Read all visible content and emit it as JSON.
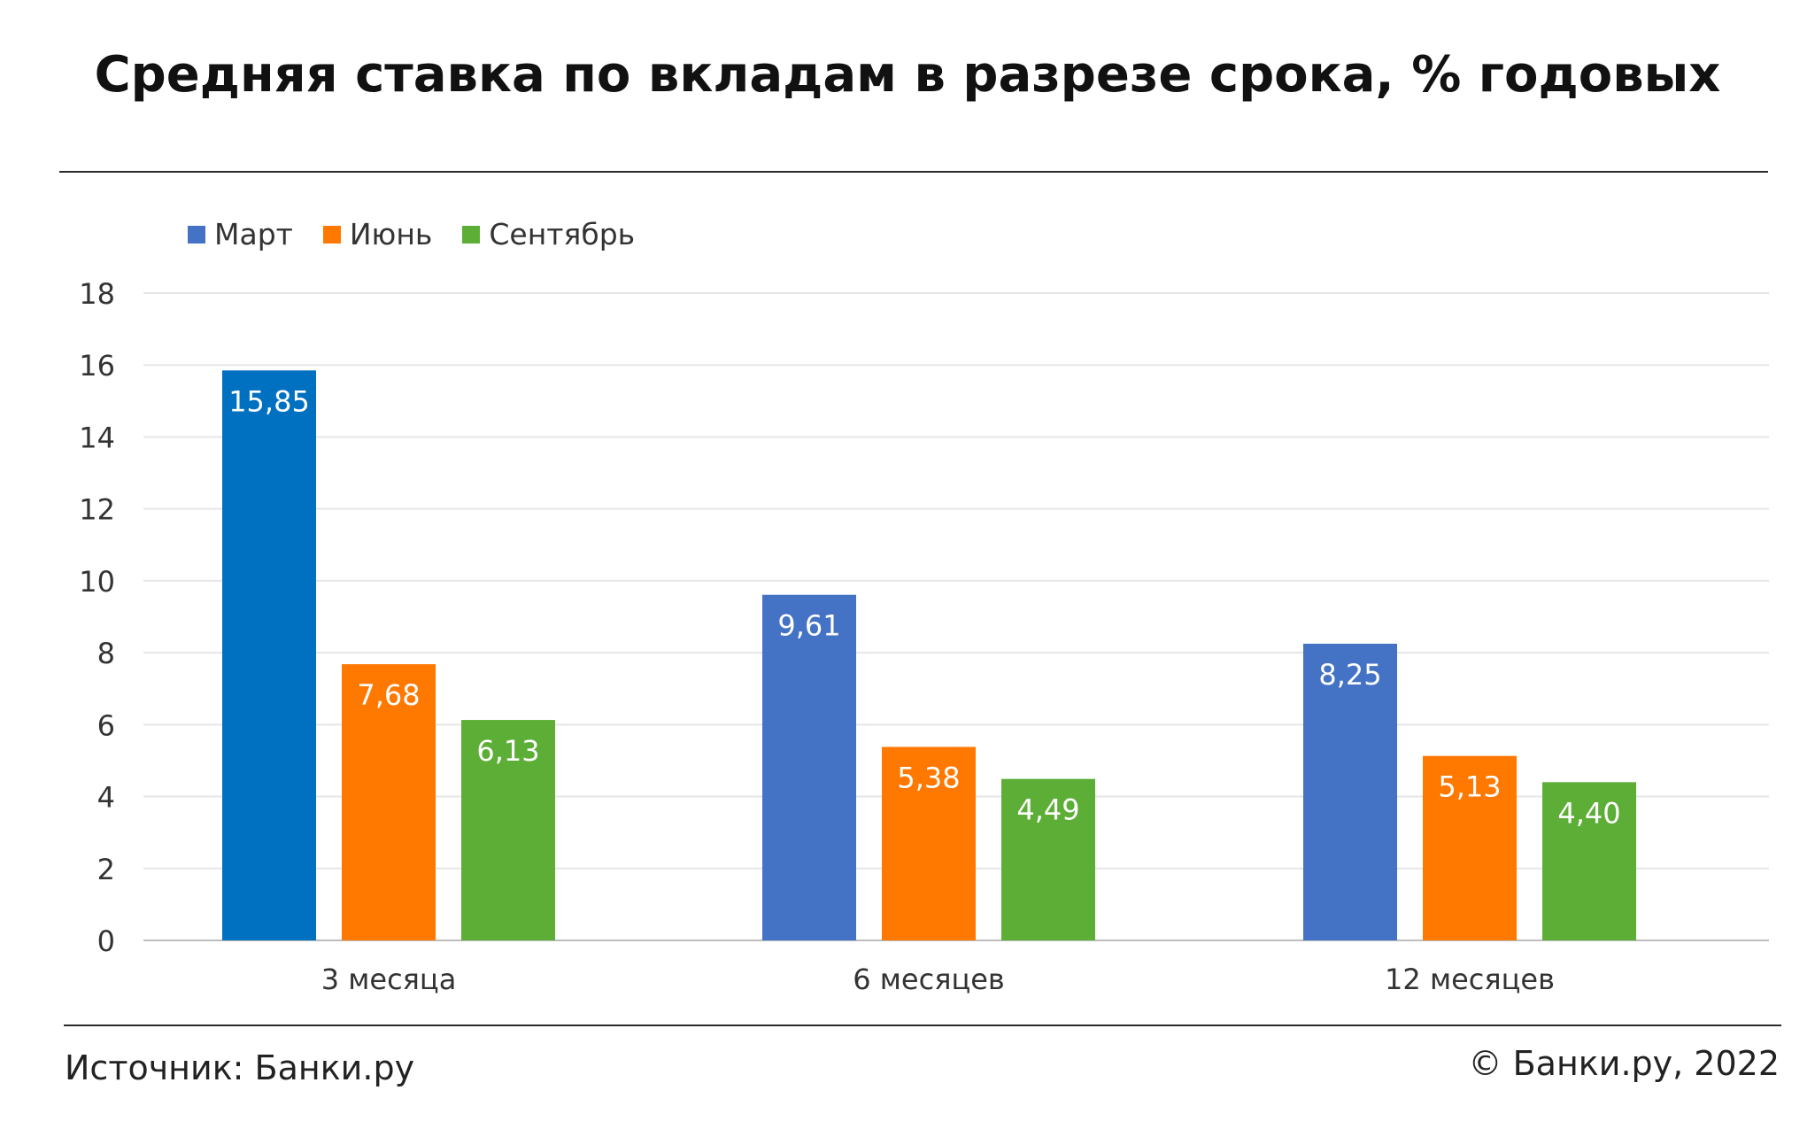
{
  "title": "Средняя ставка по вкладам в разрезе срока, % годовых",
  "footer": {
    "source": "Источник: Банки.ру",
    "copyright": "© Банки.ру, 2022"
  },
  "colors": {
    "march": "#0070C0",
    "march_alt": "#4472C4",
    "june": "#FF7800",
    "september": "#5DAE36",
    "grid": "#e6e6e6",
    "axis": "#bdbdbd",
    "tick_text": "#333333"
  },
  "chart_data": {
    "type": "bar",
    "title": "Средняя ставка по вкладам в разрезе срока, % годовых",
    "categories": [
      "3 месяца",
      "6 месяцев",
      "12 месяцев"
    ],
    "series": [
      {
        "name": "Март",
        "values": [
          15.85,
          9.61,
          8.25
        ],
        "labels": [
          "15,85",
          "9,61",
          "8,25"
        ]
      },
      {
        "name": "Июнь",
        "values": [
          7.68,
          5.38,
          5.13
        ],
        "labels": [
          "7,68",
          "5,38",
          "5,13"
        ]
      },
      {
        "name": "Сентябрь",
        "values": [
          6.13,
          4.49,
          4.4
        ],
        "labels": [
          "6,13",
          "4,49",
          "4,40"
        ]
      }
    ],
    "ylim": [
      0,
      18
    ],
    "yticks": [
      "0",
      "2",
      "4",
      "6",
      "8",
      "10",
      "12",
      "14",
      "16",
      "18"
    ],
    "grid": true,
    "legend": "top-left",
    "xlabel": "",
    "ylabel": ""
  }
}
